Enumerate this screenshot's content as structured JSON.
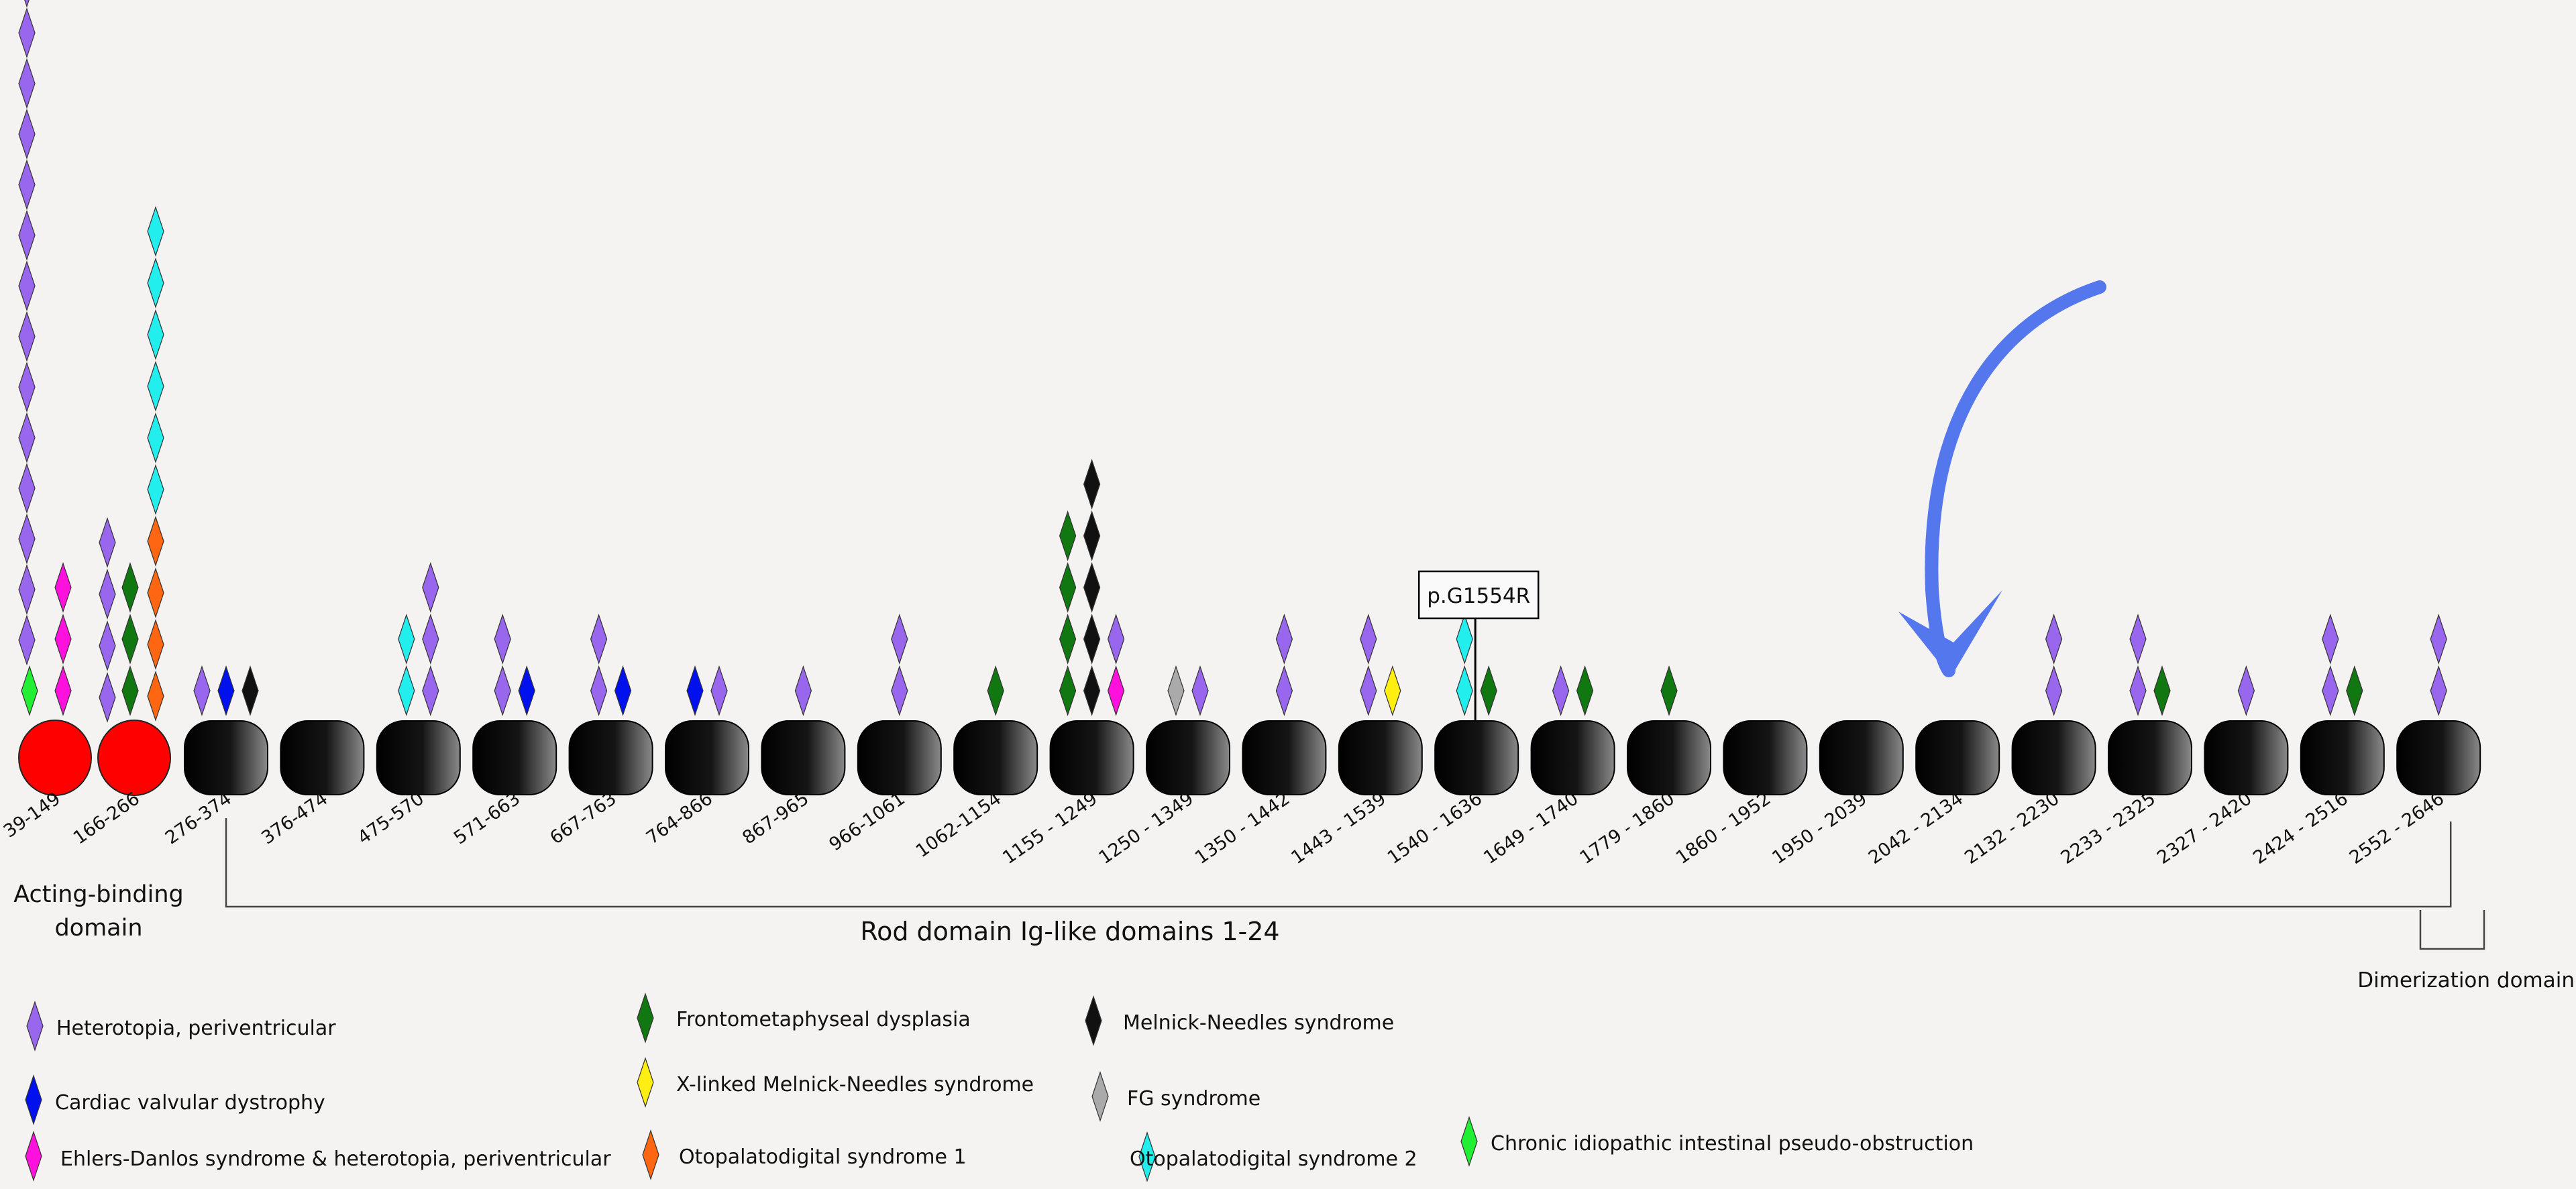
{
  "colors": {
    "heterotopia": "#9966ee",
    "cardiac": "#0011ee",
    "ehlers": "#ff11dd",
    "fmd": "#117711",
    "xmnn": "#ffee11",
    "opd1": "#ff6611",
    "mns": "#111111",
    "fg": "#aaaaaa",
    "opd2": "#22eeee",
    "cipo": "#22ee33",
    "actin_domain": "#ff0000",
    "rod_domain": "#111111",
    "arrow": "#5577ee"
  },
  "domains": [
    {
      "label": "39-149",
      "kind": "actin",
      "markers": [
        "cipo",
        "heterotopia",
        "heterotopia",
        "heterotopia",
        "heterotopia",
        "heterotopia",
        "heterotopia",
        "heterotopia",
        "heterotopia",
        "heterotopia",
        "heterotopia",
        "heterotopia",
        "heterotopia",
        "heterotopia",
        "heterotopia"
      ],
      "side": [
        "ehlers",
        "ehlers",
        "ehlers"
      ]
    },
    {
      "label": "166-266",
      "kind": "actin",
      "markers": [
        "heterotopia",
        "heterotopia",
        "heterotopia",
        "heterotopia"
      ],
      "side": [
        "fmd",
        "fmd",
        "fmd"
      ],
      "side2": [
        "opd1",
        "opd1",
        "opd1",
        "opd1",
        "opd2",
        "opd2",
        "opd2",
        "opd2",
        "opd2",
        "opd2"
      ]
    },
    {
      "label": "276-374",
      "kind": "rod",
      "groups": [
        [
          "heterotopia"
        ],
        [
          "cardiac"
        ],
        [
          "mns"
        ]
      ]
    },
    {
      "label": "376-474",
      "kind": "rod",
      "groups": []
    },
    {
      "label": "475-570",
      "kind": "rod",
      "groups": [
        [
          "opd2",
          "opd2"
        ],
        [
          "heterotopia",
          "heterotopia",
          "heterotopia"
        ]
      ]
    },
    {
      "label": "571-663",
      "kind": "rod",
      "groups": [
        [
          "heterotopia",
          "heterotopia"
        ],
        [
          "cardiac"
        ]
      ]
    },
    {
      "label": "667-763",
      "kind": "rod",
      "groups": [
        [
          "heterotopia",
          "heterotopia"
        ],
        [
          "cardiac"
        ]
      ]
    },
    {
      "label": "764-866",
      "kind": "rod",
      "groups": [
        [
          "cardiac"
        ],
        [
          "heterotopia"
        ]
      ]
    },
    {
      "label": "867-965",
      "kind": "rod",
      "groups": [
        [
          "heterotopia"
        ]
      ]
    },
    {
      "label": "966-1061",
      "kind": "rod",
      "groups": [
        [
          "heterotopia",
          "heterotopia"
        ]
      ]
    },
    {
      "label": "1062-1154",
      "kind": "rod",
      "groups": [
        [
          "fmd"
        ]
      ]
    },
    {
      "label": "1155 - 1249",
      "kind": "rod",
      "groups": [
        [
          "fmd",
          "fmd",
          "fmd",
          "fmd"
        ],
        [
          "mns",
          "mns",
          "mns",
          "mns",
          "mns"
        ],
        [
          "ehlers",
          "heterotopia"
        ]
      ]
    },
    {
      "label": "1250 - 1349",
      "kind": "rod",
      "groups": [
        [
          "fg"
        ],
        [
          "heterotopia"
        ]
      ]
    },
    {
      "label": "1350 - 1442",
      "kind": "rod",
      "groups": [
        [
          "heterotopia",
          "heterotopia"
        ]
      ]
    },
    {
      "label": "1443 - 1539",
      "kind": "rod",
      "groups": [
        [
          "heterotopia",
          "heterotopia"
        ],
        [
          "xmnn"
        ]
      ]
    },
    {
      "label": "1540 - 1636",
      "kind": "rod",
      "groups": [
        [
          "opd2",
          "opd2"
        ],
        [
          "fmd"
        ]
      ]
    },
    {
      "label": "1649 - 1740",
      "kind": "rod",
      "groups": [
        [
          "heterotopia"
        ],
        [
          "fmd"
        ]
      ]
    },
    {
      "label": "1779 - 1860",
      "kind": "rod",
      "groups": [
        [
          "fmd"
        ]
      ]
    },
    {
      "label": "1860 - 1952",
      "kind": "rod",
      "groups": []
    },
    {
      "label": "1950 - 2039",
      "kind": "rod",
      "groups": []
    },
    {
      "label": "2042 - 2134",
      "kind": "rod",
      "groups": []
    },
    {
      "label": "2132 - 2230",
      "kind": "rod",
      "groups": [
        [
          "heterotopia",
          "heterotopia"
        ]
      ]
    },
    {
      "label": "2233 - 2325",
      "kind": "rod",
      "groups": [
        [
          "heterotopia",
          "heterotopia"
        ],
        [
          "fmd"
        ]
      ]
    },
    {
      "label": "2327 - 2420",
      "kind": "rod",
      "groups": [
        [
          "heterotopia"
        ]
      ]
    },
    {
      "label": "2424 - 2516",
      "kind": "rod",
      "groups": [
        [
          "heterotopia",
          "heterotopia"
        ],
        [
          "fmd"
        ]
      ]
    },
    {
      "label": "2552 - 2646",
      "kind": "rod",
      "groups": [
        [
          "heterotopia",
          "heterotopia"
        ]
      ]
    }
  ],
  "annotations": {
    "actin_binding": "Acting-binding\ndomain",
    "rod_domain": "Rod domain Ig-like domains 1-24",
    "dimerization": "Dimerization domain",
    "variant": "p.G1554R"
  },
  "legend": [
    {
      "key": "heterotopia",
      "label": "Heterotopia, periventricular"
    },
    {
      "key": "cardiac",
      "label": "Cardiac valvular dystrophy"
    },
    {
      "key": "ehlers",
      "label": "Ehlers-Danlos syndrome & heterotopia, periventricular"
    },
    {
      "key": "fmd",
      "label": "Frontometaphyseal dysplasia"
    },
    {
      "key": "xmnn",
      "label": "X-linked Melnick-Needles syndrome"
    },
    {
      "key": "opd1",
      "label": "Otopalatodigital syndrome 1"
    },
    {
      "key": "mns",
      "label": "Melnick-Needles syndrome"
    },
    {
      "key": "fg",
      "label": "FG syndrome"
    },
    {
      "key": "opd2",
      "label": "Otopalatodigital syndrome 2"
    },
    {
      "key": "cipo",
      "label": "Chronic idiopathic intestinal pseudo-obstruction"
    }
  ]
}
